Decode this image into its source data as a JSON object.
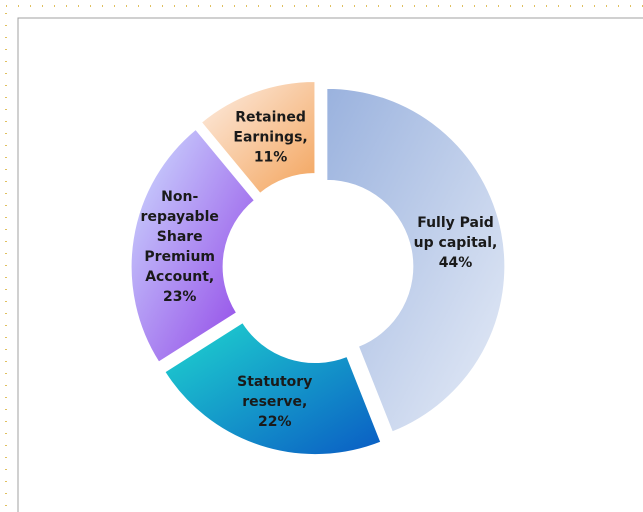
{
  "chart_data": {
    "type": "donut",
    "categories": [
      "Fully Paid up capital",
      "Statutory reserve",
      "Non-repayable Share Premium Account",
      "Retained Earnings"
    ],
    "values": [
      44,
      22,
      23,
      11
    ],
    "value_labels": [
      [
        "Fully Paid",
        "up capital,",
        "44%"
      ],
      [
        "Statutory",
        "reserve,",
        "22%"
      ],
      [
        "Non-",
        "repayable",
        "Share",
        "Premium",
        "Account,",
        "23%"
      ],
      [
        "Retained",
        "Earnings,",
        "11%"
      ]
    ],
    "colors": [
      [
        "#9ab2de",
        "#e6ecf7"
      ],
      [
        "#1fd6cf",
        "#0a5cc4"
      ],
      [
        "#cfe0ff",
        "#8f3fe6"
      ],
      [
        "#fdeee4",
        "#f3a45c"
      ]
    ]
  }
}
